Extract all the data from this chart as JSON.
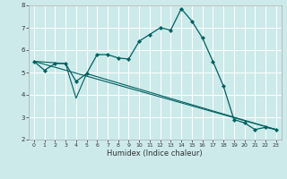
{
  "xlabel": "Humidex (Indice chaleur)",
  "ylabel": "",
  "bg_color": "#cceaea",
  "grid_color": "#ffffff",
  "line_color": "#006060",
  "xlim": [
    -0.5,
    23.5
  ],
  "ylim": [
    2.0,
    8.0
  ],
  "x_ticks": [
    0,
    1,
    2,
    3,
    4,
    5,
    6,
    7,
    8,
    9,
    10,
    11,
    12,
    13,
    14,
    15,
    16,
    17,
    18,
    19,
    20,
    21,
    22,
    23
  ],
  "y_ticks": [
    2,
    3,
    4,
    5,
    6,
    7,
    8
  ],
  "curve1_x": [
    0,
    1,
    2,
    3,
    4,
    5,
    6,
    7,
    8,
    9,
    10,
    11,
    12,
    13,
    14,
    15,
    16,
    17,
    18,
    19,
    20,
    21,
    22,
    23
  ],
  "curve1_y": [
    5.5,
    5.1,
    5.4,
    5.4,
    4.6,
    4.95,
    5.8,
    5.8,
    5.65,
    5.6,
    6.4,
    6.7,
    7.0,
    6.9,
    7.85,
    7.3,
    6.55,
    5.5,
    4.4,
    2.9,
    2.75,
    2.45,
    2.55,
    2.45
  ],
  "curve2_x": [
    0,
    3,
    4,
    5,
    23
  ],
  "curve2_y": [
    5.5,
    5.4,
    3.85,
    4.95,
    2.45
  ],
  "trend_x": [
    0,
    23
  ],
  "trend_y": [
    5.5,
    2.45
  ]
}
